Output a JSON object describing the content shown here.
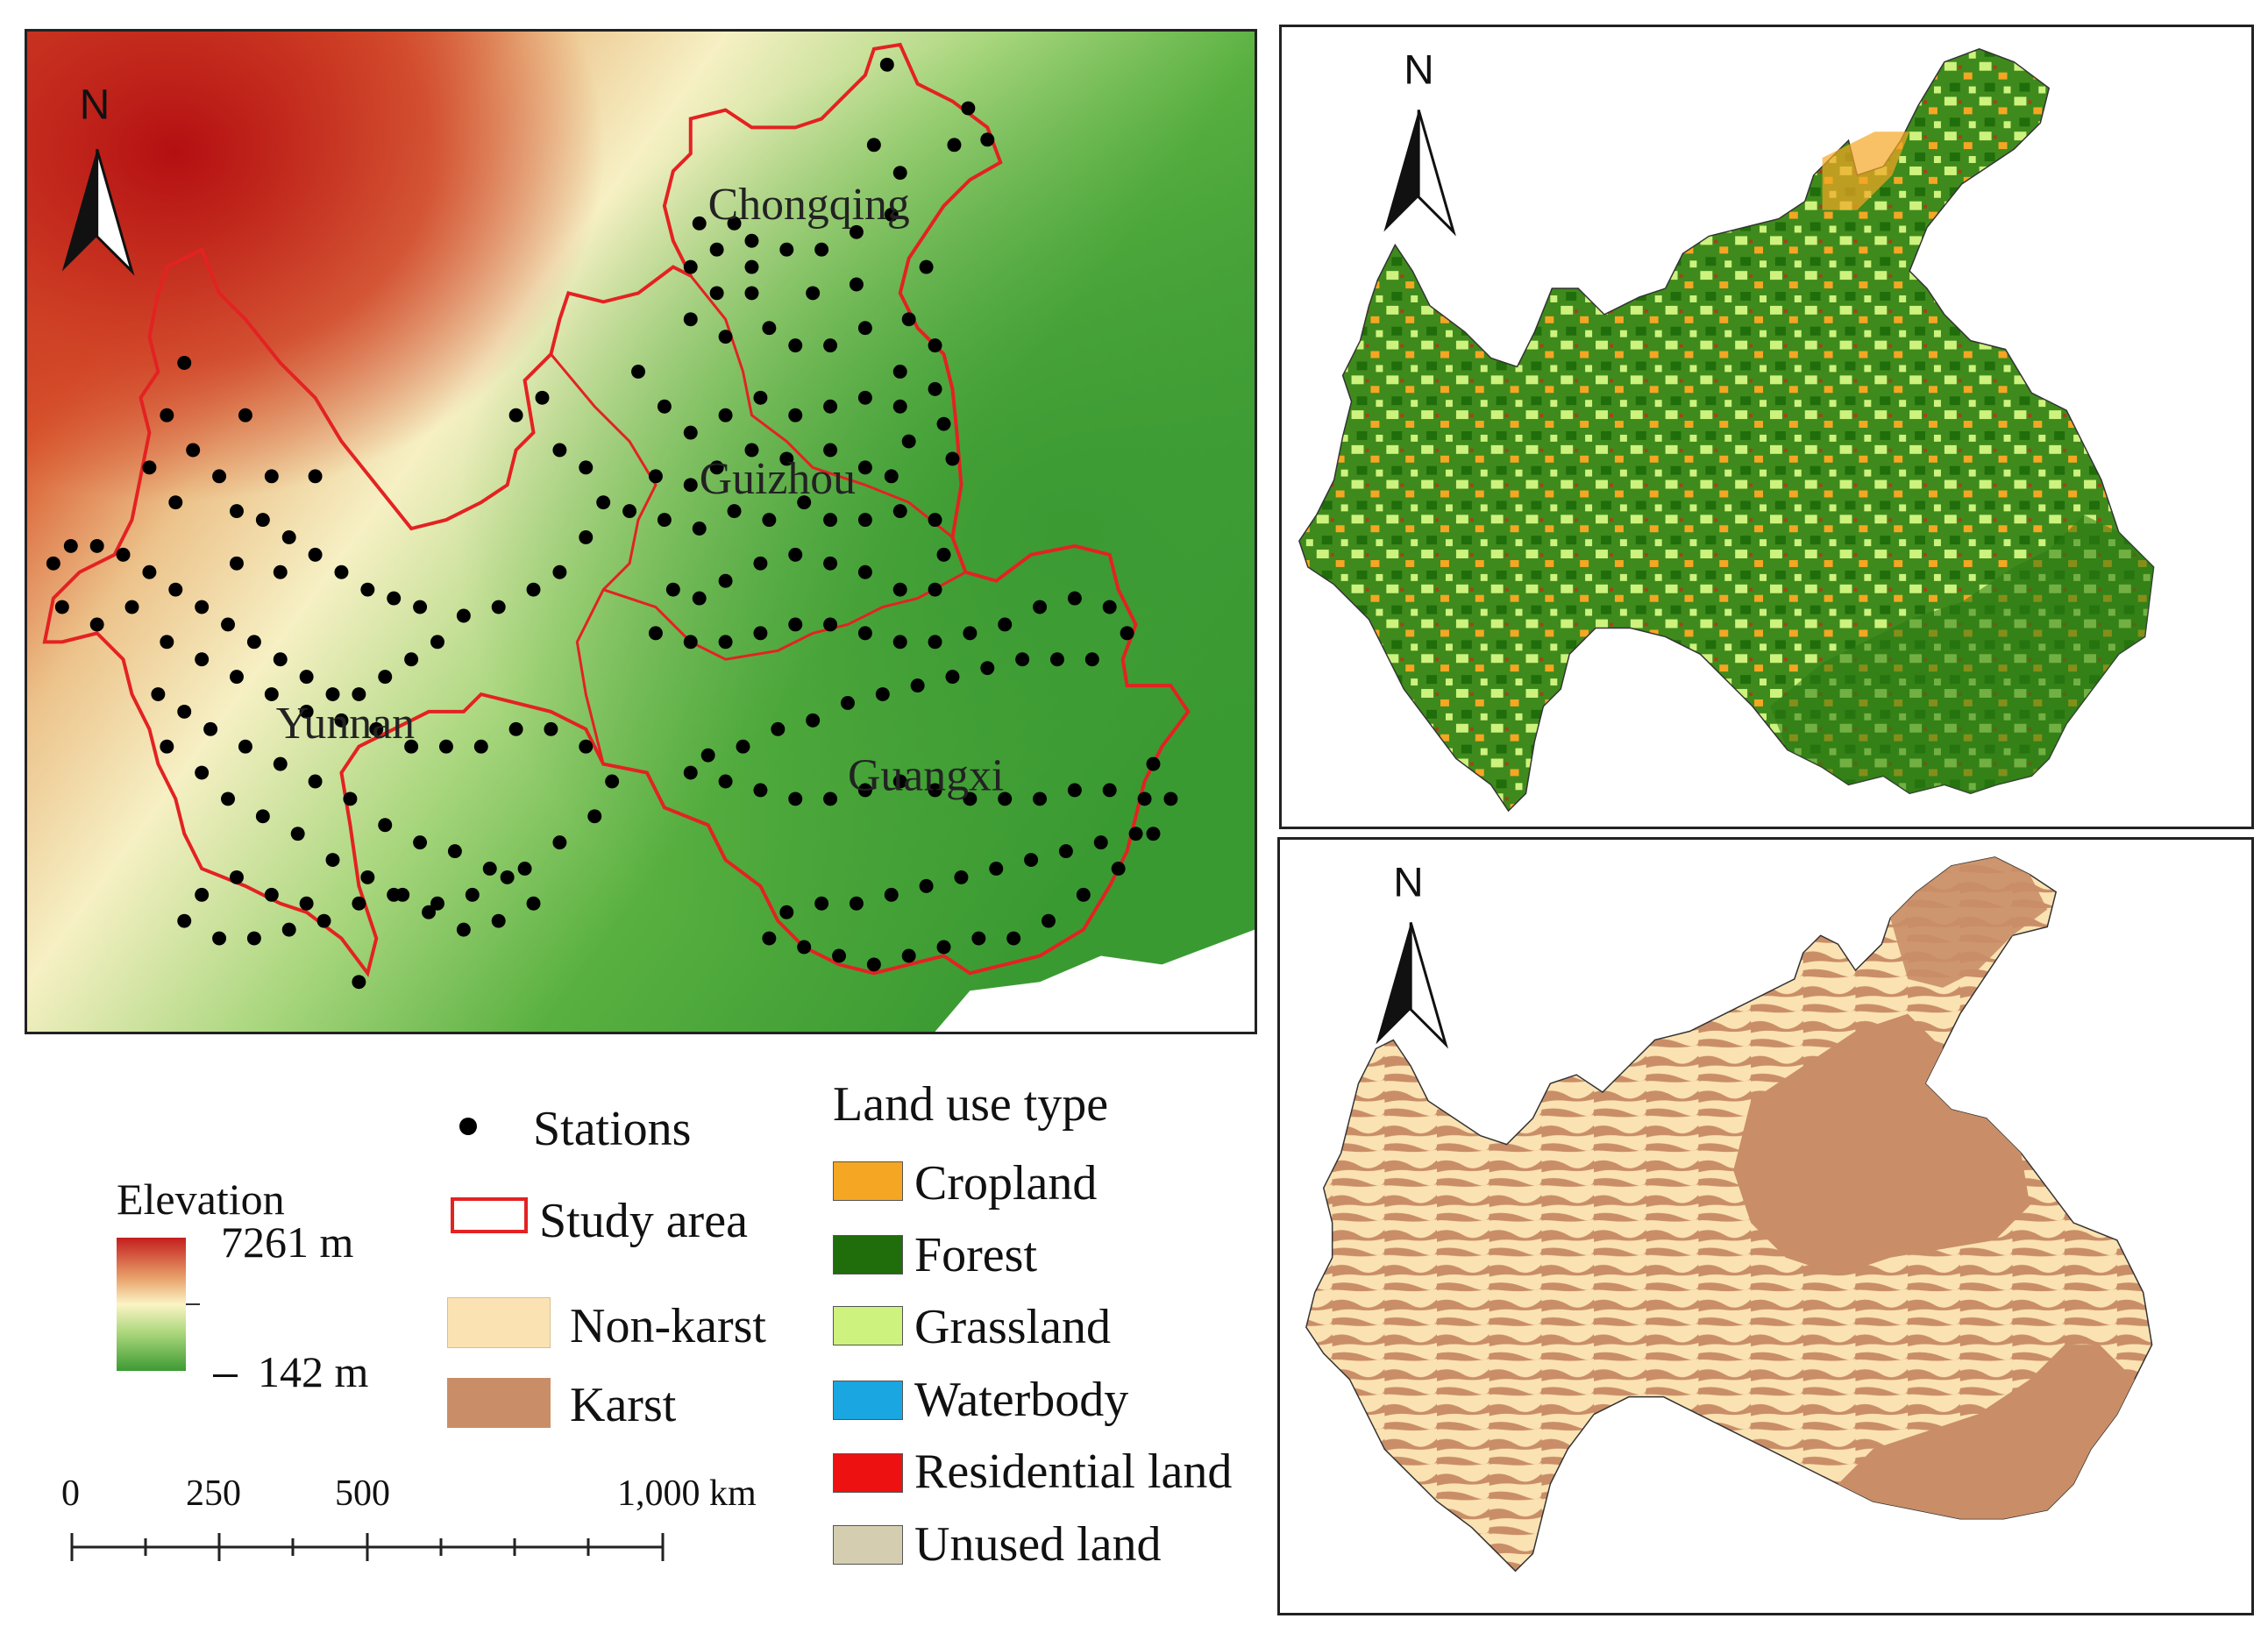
{
  "elevation_map": {
    "north_label": "N",
    "provinces": [
      "Chongqing",
      "Guizhou",
      "Yunnan",
      "Guangxi"
    ]
  },
  "landuse_map": {
    "north_label": "N"
  },
  "karst_map": {
    "north_label": "N"
  },
  "legend": {
    "elevation_title": "Elevation",
    "elevation_max": "7261 m",
    "elevation_min": "142 m",
    "stations_label": "Stations",
    "study_area_label": "Study area",
    "nonkarst_label": "Non-karst",
    "karst_label": "Karst",
    "landuse_title": "Land use type",
    "landuse_items": [
      "Cropland",
      "Forest",
      "Grassland",
      "Waterbody",
      "Residential land",
      "Unused land"
    ]
  },
  "scale_bar": {
    "ticks": [
      "0",
      "250",
      "500",
      "1,000 km"
    ]
  },
  "colors": {
    "study_area_outline": "#e32222",
    "station": "#000000",
    "elev_high": "#c41e1e",
    "elev_mid": "#fbf4c4",
    "elev_low": "#3d9a34",
    "cropland": "#f5a623",
    "forest": "#1f6d0b",
    "grassland": "#cdf27d",
    "waterbody": "#1aa6e0",
    "residential": "#ee1111",
    "unused": "#d4cdb0",
    "nonkarst": "#fbe2b2",
    "karst": "#c98e67"
  }
}
